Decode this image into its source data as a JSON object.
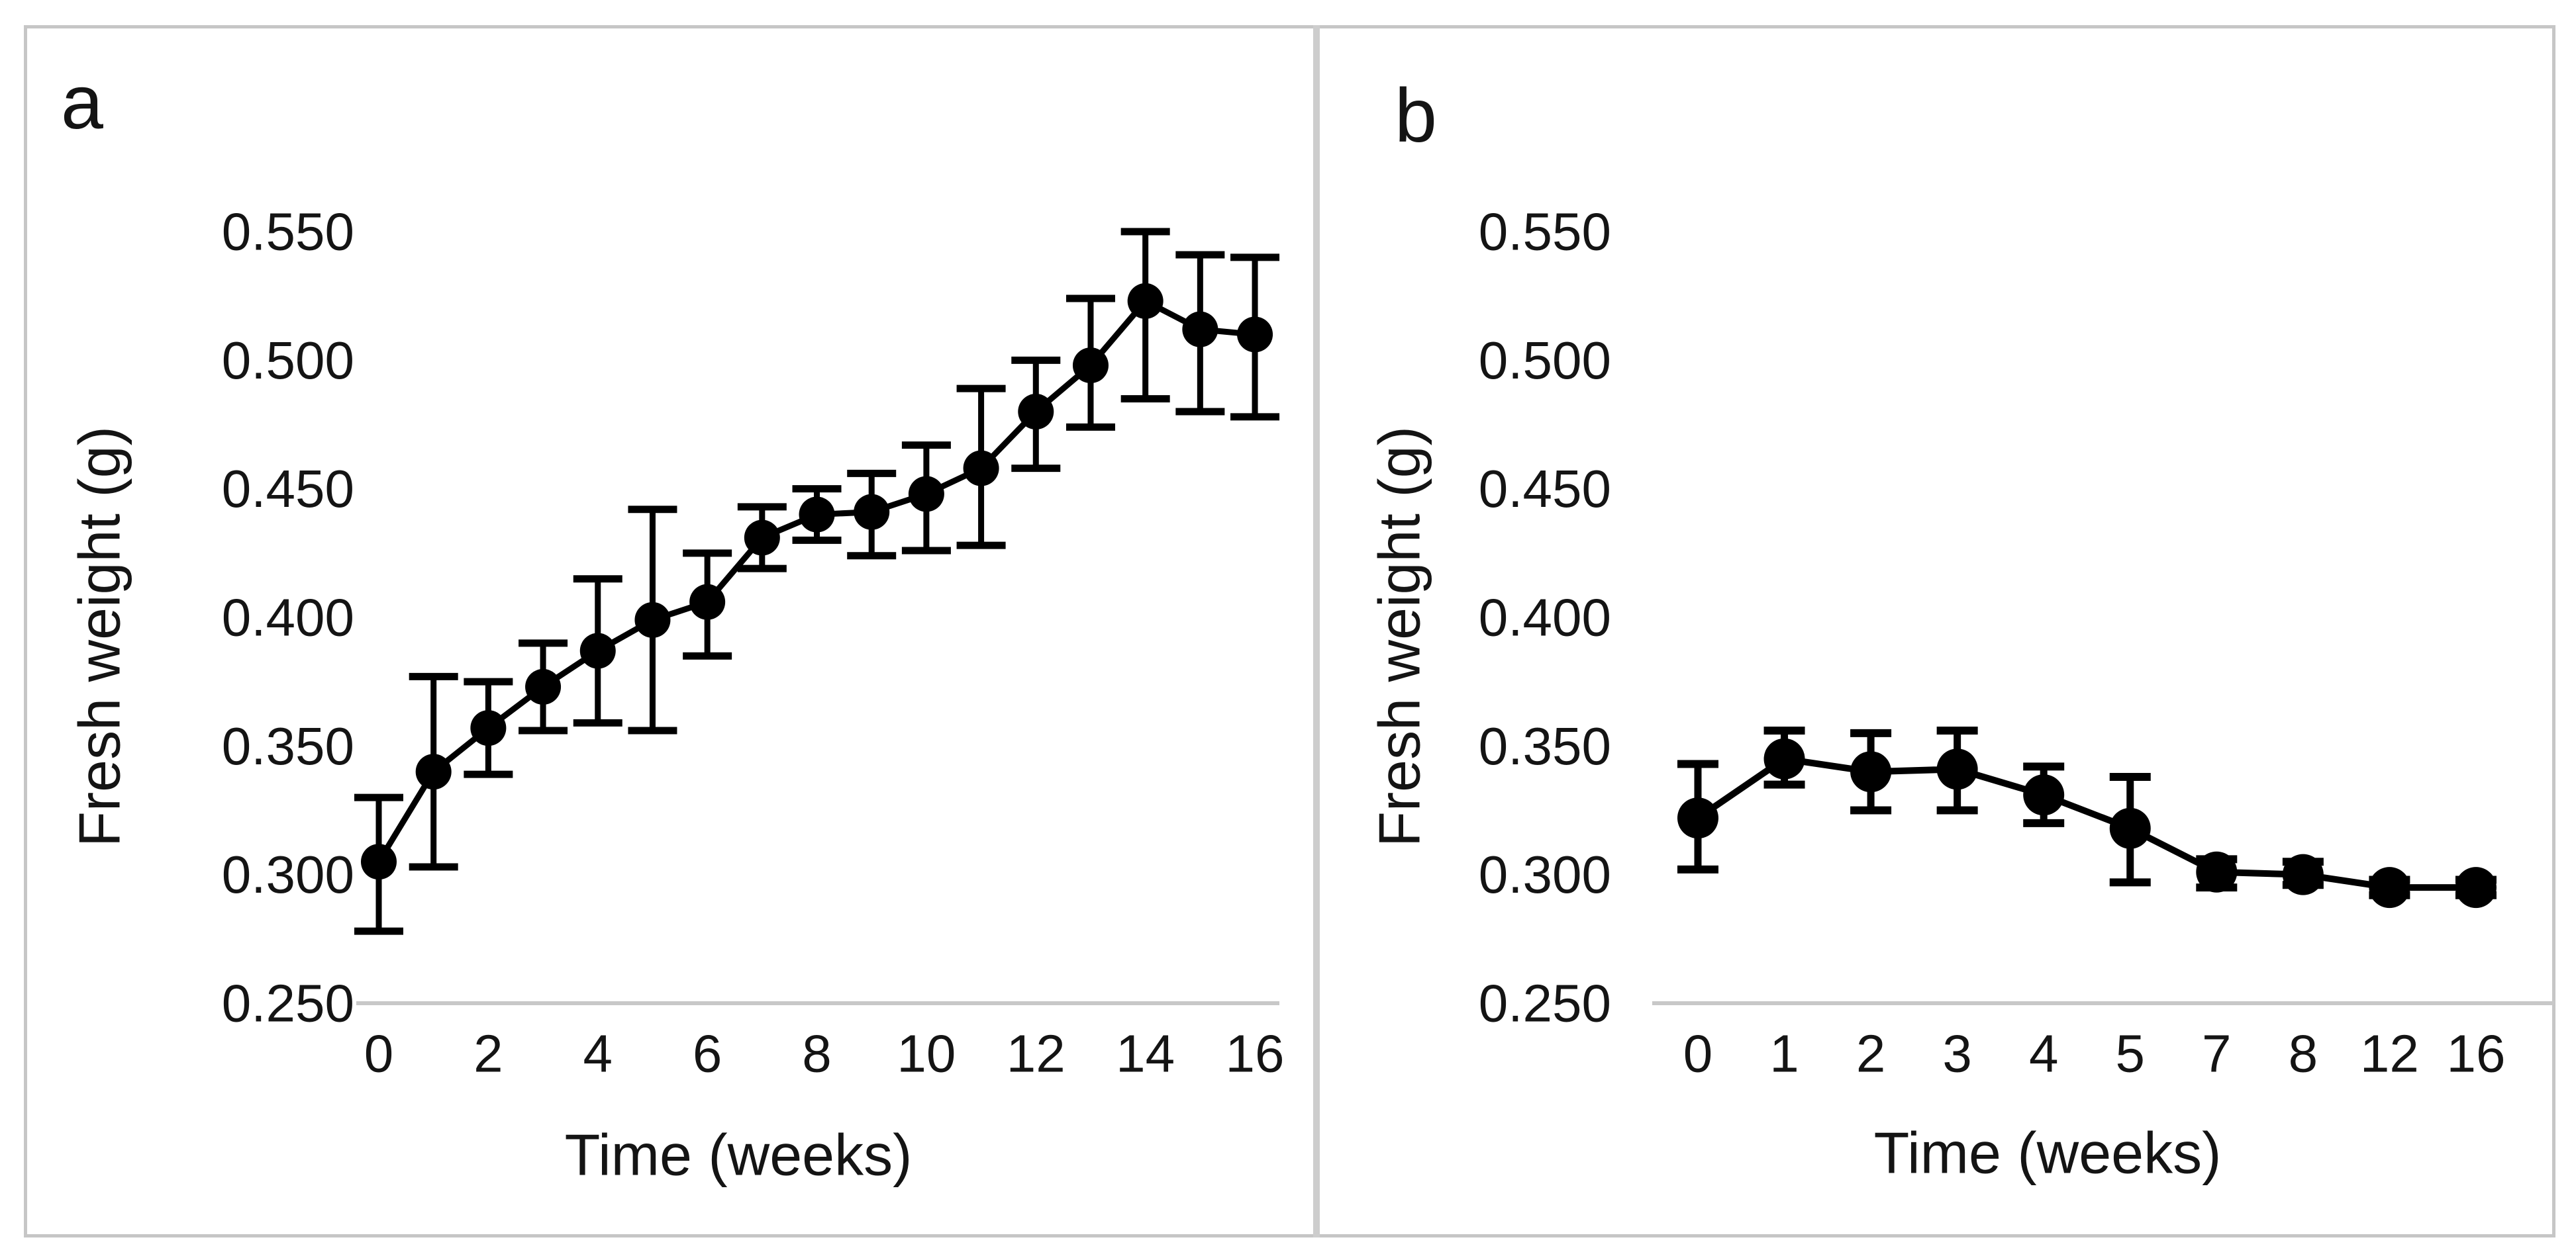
{
  "figure": {
    "background": "#ffffff",
    "border_color": "#c6c6c6",
    "divider_color": "#cdcdcd",
    "text_color": "#141414",
    "axis_line_color": "#c8c8c8",
    "series_color": "#000000"
  },
  "chart_data": [
    {
      "type": "line",
      "panel_label": "a",
      "title": "",
      "xlabel": "Time (weeks)",
      "ylabel": "Fresh weight (g)",
      "ylim": [
        0.25,
        0.55
      ],
      "ytick_step": 0.05,
      "grid": false,
      "legend_position": "none",
      "marker": "filled-circle",
      "error_bars": true,
      "y_tick_labels": [
        "0.550",
        "0.500",
        "0.450",
        "0.400",
        "0.350",
        "0.300",
        "0.250"
      ],
      "x_tick_labels": [
        "0",
        "2",
        "4",
        "6",
        "8",
        "10",
        "12",
        "14",
        "16"
      ],
      "x": [
        0,
        1,
        2,
        3,
        4,
        5,
        6,
        7,
        8,
        9,
        10,
        11,
        12,
        13,
        14,
        15,
        16
      ],
      "values": [
        0.305,
        0.34,
        0.357,
        0.373,
        0.387,
        0.399,
        0.406,
        0.431,
        0.44,
        0.441,
        0.448,
        0.458,
        0.48,
        0.498,
        0.523,
        0.512,
        0.51
      ],
      "error_low": [
        0.278,
        0.303,
        0.339,
        0.356,
        0.359,
        0.356,
        0.385,
        0.419,
        0.43,
        0.424,
        0.426,
        0.428,
        0.458,
        0.474,
        0.485,
        0.48,
        0.478
      ],
      "error_high": [
        0.33,
        0.377,
        0.375,
        0.39,
        0.415,
        0.442,
        0.425,
        0.443,
        0.45,
        0.456,
        0.467,
        0.489,
        0.5,
        0.524,
        0.55,
        0.541,
        0.54
      ]
    },
    {
      "type": "line",
      "panel_label": "b",
      "title": "",
      "xlabel": "Time (weeks)",
      "ylabel": "Fresh weight (g)",
      "ylim": [
        0.25,
        0.55
      ],
      "ytick_step": 0.05,
      "grid": false,
      "legend_position": "none",
      "marker": "filled-circle",
      "error_bars": true,
      "y_tick_labels": [
        "0.550",
        "0.500",
        "0.450",
        "0.400",
        "0.350",
        "0.300",
        "0.250"
      ],
      "categories": [
        "0",
        "1",
        "2",
        "3",
        "4",
        "5",
        "7",
        "8",
        "12",
        "16"
      ],
      "values": [
        0.322,
        0.345,
        0.34,
        0.341,
        0.331,
        0.318,
        0.301,
        0.3,
        0.295,
        0.295
      ],
      "error_low": [
        0.302,
        0.335,
        0.325,
        0.325,
        0.32,
        0.297,
        0.295,
        0.296,
        0.292,
        0.292
      ],
      "error_high": [
        0.343,
        0.356,
        0.355,
        0.356,
        0.342,
        0.338,
        0.306,
        0.305,
        0.298,
        0.298
      ]
    }
  ]
}
